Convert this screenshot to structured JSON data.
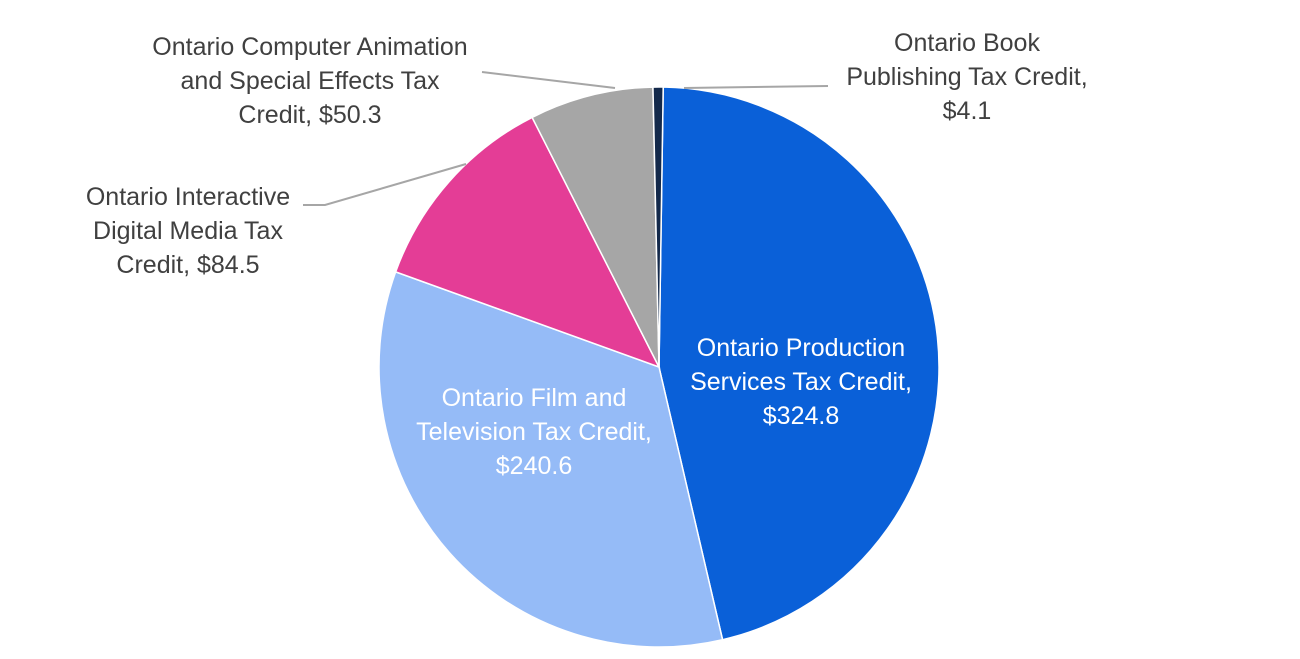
{
  "chart_data": {
    "type": "pie",
    "title": "",
    "unit": "$",
    "slices": [
      {
        "name": "Ontario Production Services Tax Credit",
        "value": 324.8,
        "color": "#0a60d8",
        "label_lines": [
          "Ontario Production",
          "Services Tax Credit,",
          "$324.8"
        ]
      },
      {
        "name": "Ontario Film and Television Tax Credit",
        "value": 240.6,
        "color": "#95bbf7",
        "label_lines": [
          "Ontario Film and",
          "Television Tax Credit,",
          "$240.6"
        ]
      },
      {
        "name": "Ontario Interactive Digital Media Tax Credit",
        "value": 84.5,
        "color": "#e43d96",
        "label_lines": [
          "Ontario Interactive",
          "Digital Media Tax",
          "Credit, $84.5"
        ]
      },
      {
        "name": "Ontario Computer Animation and Special Effects Tax Credit",
        "value": 50.3,
        "color": "#a6a6a6",
        "label_lines": [
          "Ontario Computer Animation",
          "and Special Effects Tax",
          "Credit, $50.3"
        ]
      },
      {
        "name": "Ontario Book Publishing Tax Credit",
        "value": 4.1,
        "color": "#13294b",
        "label_lines": [
          "Ontario Book",
          "Publishing Tax Credit,",
          "$4.1"
        ]
      }
    ],
    "legend": "none"
  }
}
